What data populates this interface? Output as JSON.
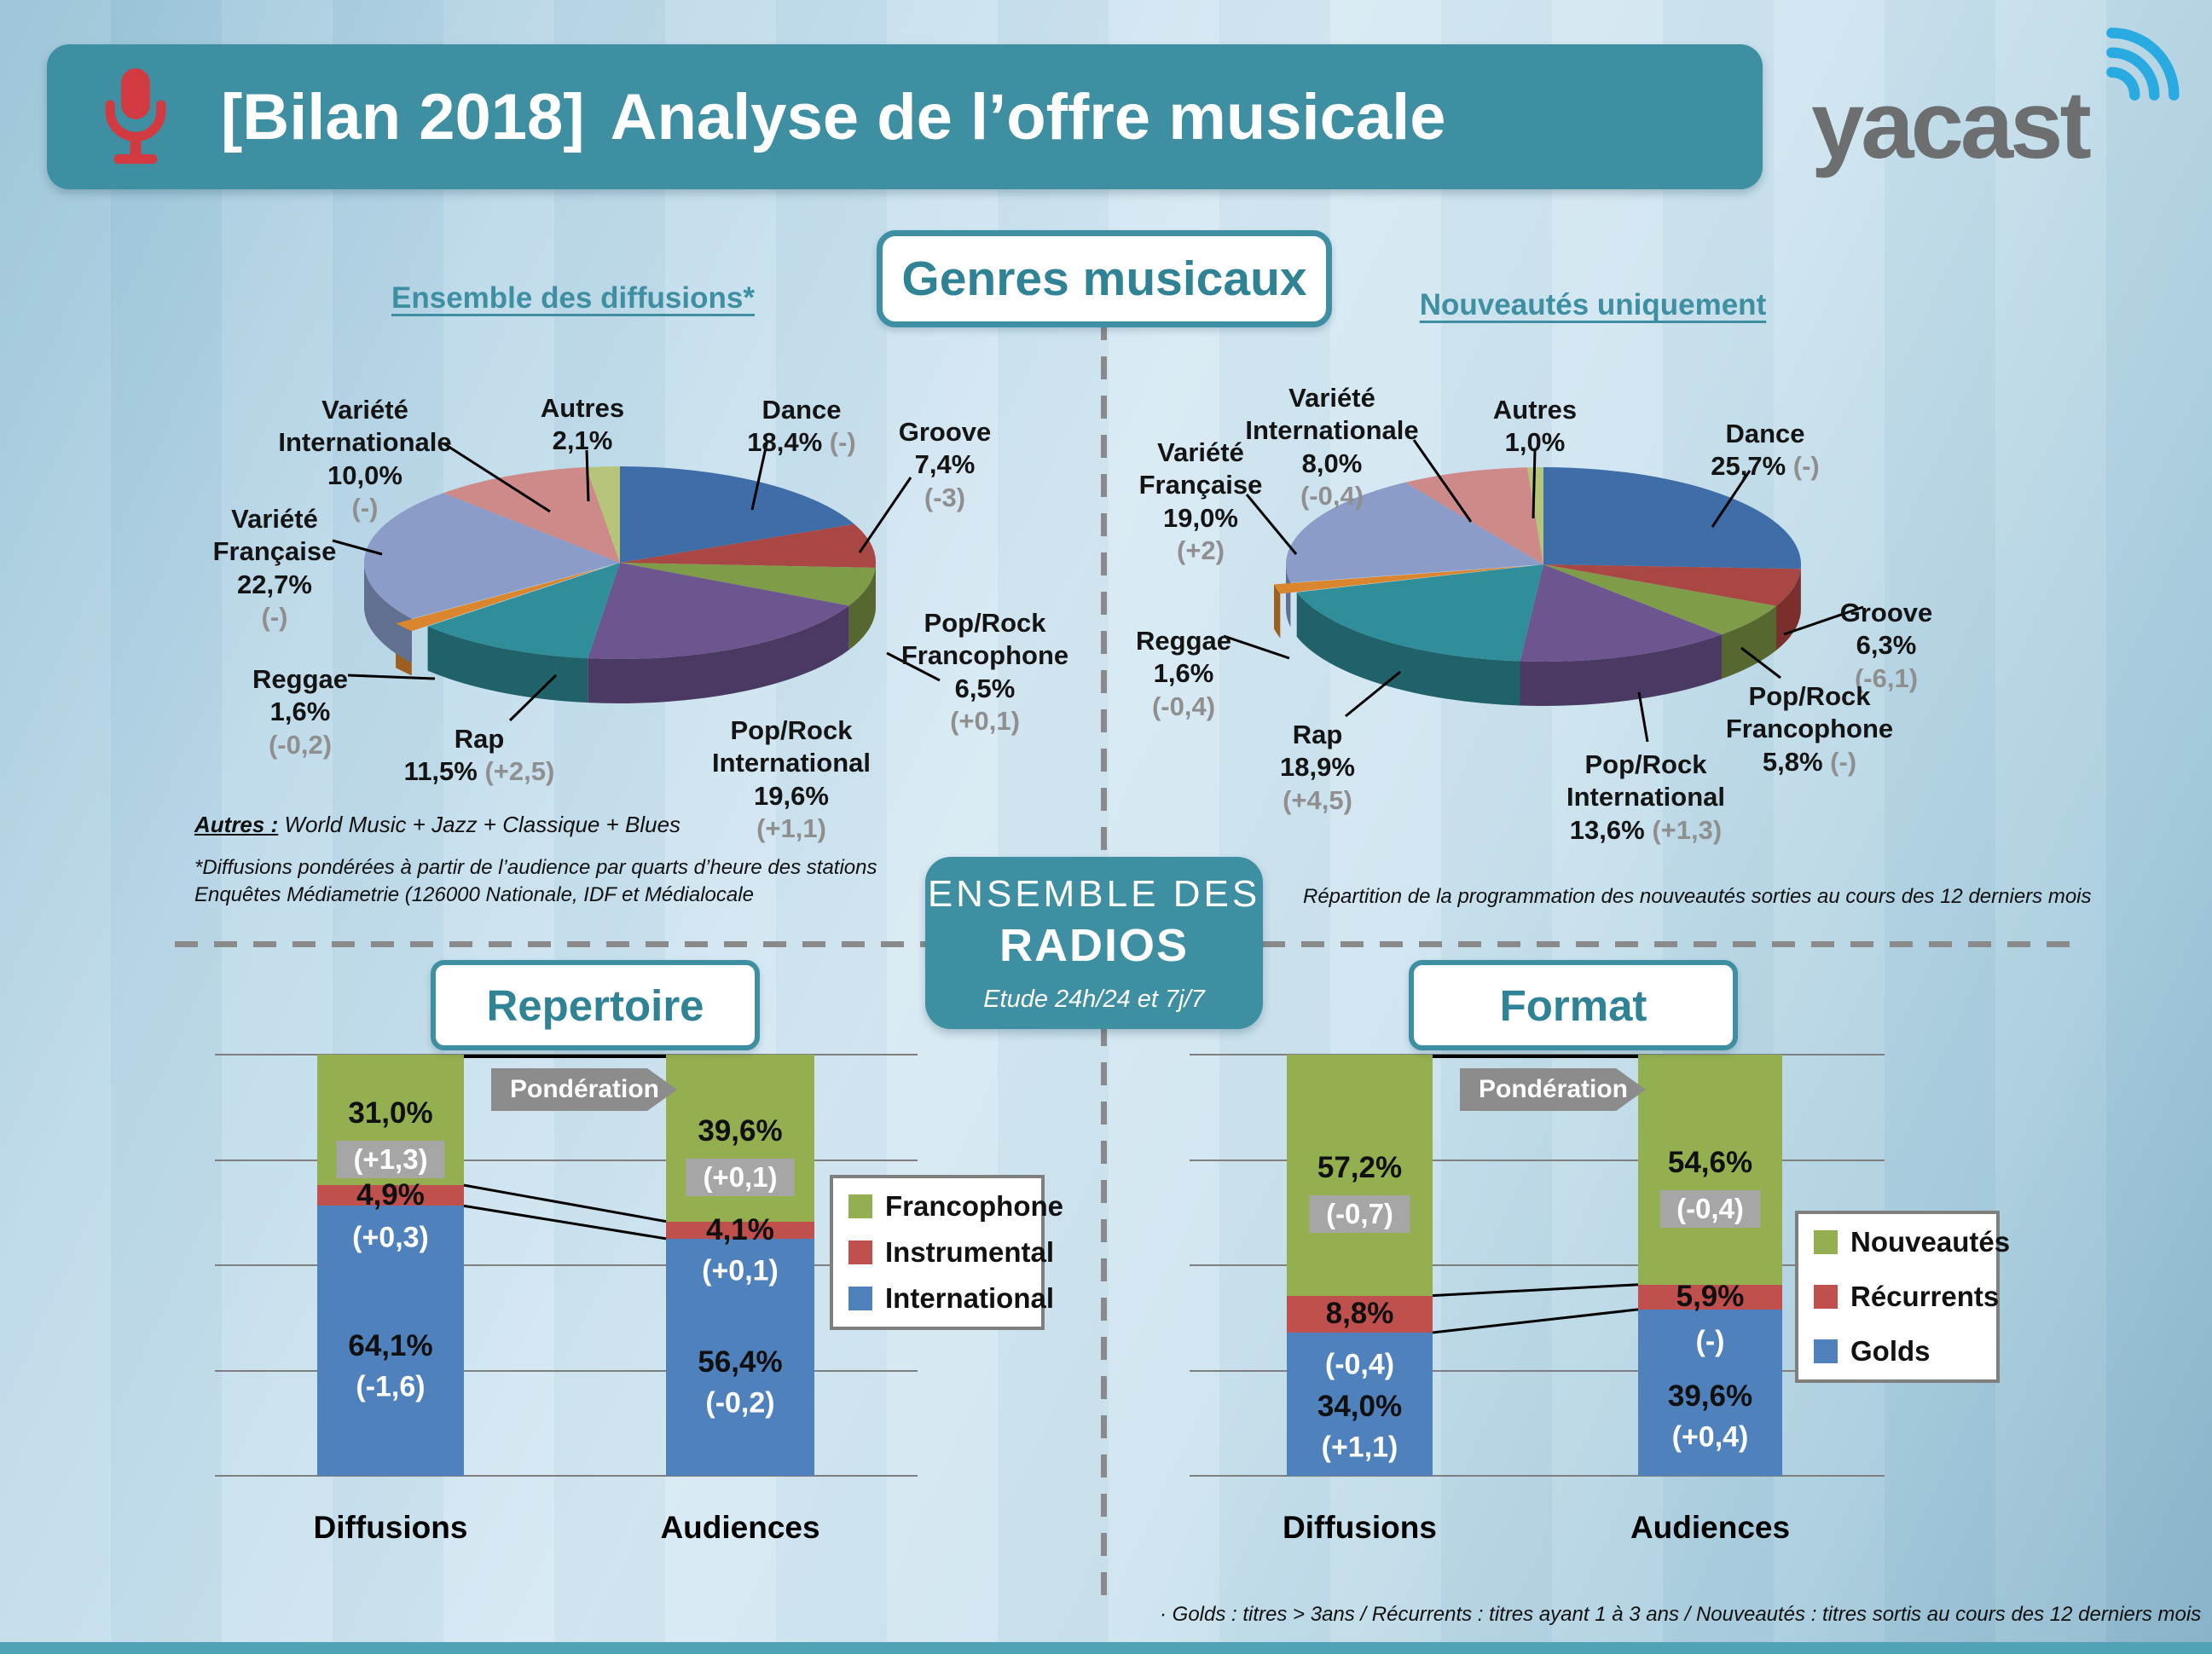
{
  "header": {
    "title_prefix": "[Bilan 2018]",
    "title_main": "Analyse de l’offre musicale",
    "logo_text": "yacast"
  },
  "genres": {
    "box_label": "Genres musicaux",
    "left_title": "Ensemble des diffusions*",
    "right_title": "Nouveautés uniquement",
    "left_footnote_label": "Autres :",
    "left_footnote_text": " World Music + Jazz + Classique + Blues",
    "left_footnote2": "*Diffusions pondérées  à partir de l’audience par quarts d’heure des stations",
    "left_footnote3": "Enquêtes Médiametrie  (126000 Nationale, IDF et Médialocale",
    "right_footnote": "Répartition  de la programmation   des nouveautés sorties au cours des 12 derniers mois"
  },
  "center_box": {
    "line1": "ENSEMBLE  DES",
    "line2": "RADIOS",
    "line3": "Etude 24h/24 et 7j/7"
  },
  "repertoire": {
    "box_label": "Repertoire",
    "pond_label": "Pondération"
  },
  "format": {
    "box_label": "Format",
    "pond_label": "Pondération",
    "footnote": "· Golds : titres > 3ans   /  Récurrents : titres ayant  1 à 3 ans  /  Nouveautés   : titres sortis au cours des 12 derniers mois"
  },
  "chart_data": [
    {
      "type": "pie",
      "title": "Ensemble des diffusions*",
      "unit": "%",
      "slices": [
        {
          "label": "Dance",
          "value": 18.4,
          "change": "(-)"
        },
        {
          "label": "Groove",
          "value": 7.4,
          "change": "(-3)"
        },
        {
          "label": "Pop/Rock Francophone",
          "value": 6.5,
          "change": "(+0,1)"
        },
        {
          "label": "Pop/Rock International",
          "value": 19.6,
          "change": "(+1,1)"
        },
        {
          "label": "Rap",
          "value": 11.5,
          "change": "(+2,5)"
        },
        {
          "label": "Reggae",
          "value": 1.6,
          "change": "(-0,2)"
        },
        {
          "label": "Variété Française",
          "value": 22.7,
          "change": "(-)"
        },
        {
          "label": "Variété Internationale",
          "value": 10.0,
          "change": "(-)"
        },
        {
          "label": "Autres",
          "value": 2.1,
          "change": null
        }
      ]
    },
    {
      "type": "pie",
      "title": "Nouveautés uniquement",
      "unit": "%",
      "slices": [
        {
          "label": "Dance",
          "value": 25.7,
          "change": "(-)"
        },
        {
          "label": "Groove",
          "value": 6.3,
          "change": "(-6,1)"
        },
        {
          "label": "Pop/Rock Francophone",
          "value": 5.8,
          "change": "(-)"
        },
        {
          "label": "Pop/Rock International",
          "value": 13.6,
          "change": "(+1,3)"
        },
        {
          "label": "Rap",
          "value": 18.9,
          "change": "(+4,5)"
        },
        {
          "label": "Reggae",
          "value": 1.6,
          "change": "(-0,4)"
        },
        {
          "label": "Variété Française",
          "value": 19.0,
          "change": "(+2)"
        },
        {
          "label": "Variété Internationale",
          "value": 8.0,
          "change": "(-0,4)"
        },
        {
          "label": "Autres",
          "value": 1.0,
          "change": null
        }
      ]
    },
    {
      "type": "bar",
      "title": "Repertoire",
      "stacked": true,
      "unit": "%",
      "ylim": [
        0,
        100
      ],
      "grid_step": 25,
      "categories": [
        "Diffusions",
        "Audiences"
      ],
      "legend": [
        "Francophone",
        "Instrumental",
        "International"
      ],
      "series": [
        {
          "name": "Francophone",
          "values": [
            31.0,
            39.6
          ],
          "changes": [
            "(+1,3)",
            "(+0,1)"
          ]
        },
        {
          "name": "Instrumental",
          "values": [
            4.9,
            4.1
          ],
          "changes": [
            "(+0,3)",
            "(+0,1)"
          ]
        },
        {
          "name": "International",
          "values": [
            64.1,
            56.4
          ],
          "changes": [
            "(-1,6)",
            "(-0,2)"
          ]
        }
      ]
    },
    {
      "type": "bar",
      "title": "Format",
      "stacked": true,
      "unit": "%",
      "ylim": [
        0,
        100
      ],
      "grid_step": 25,
      "categories": [
        "Diffusions",
        "Audiences"
      ],
      "legend": [
        "Nouveautés",
        "Récurrents",
        "Golds"
      ],
      "series": [
        {
          "name": "Nouveautés",
          "values": [
            57.2,
            54.6
          ],
          "changes": [
            "(-0,7)",
            "(-0,4)"
          ]
        },
        {
          "name": "Récurrents",
          "values": [
            8.8,
            5.9
          ],
          "changes": [
            "(-0,4)",
            "(-)"
          ]
        },
        {
          "name": "Golds",
          "values": [
            34.0,
            39.6
          ],
          "changes": [
            "(+1,1)",
            "(+0,4)"
          ]
        }
      ]
    }
  ],
  "colors": {
    "accent": "#3d8fa1",
    "teal_text": "#2f8395",
    "mic_red": "#d23a42",
    "logo_gray": "#6d6e70",
    "logo_blue": "#29abe2",
    "pie_top": [
      "#3e6da8",
      "#a84744",
      "#7f9d49",
      "#6d5590",
      "#2f8e9a",
      "#d9862f",
      "#8b9cc9",
      "#cd8a88",
      "#b6c579"
    ],
    "pie_side": [
      "#2b4c77",
      "#7a2f2d",
      "#56682f",
      "#4a3a63",
      "#20616a",
      "#9d5f1f",
      "#616f90",
      "#96605e",
      "#7f8c4c"
    ],
    "bar_series": [
      "#94af4f",
      "#c0504d",
      "#4f81bd"
    ],
    "badge_bg": "#a6a6a6",
    "grid": "#7f7f7f"
  }
}
